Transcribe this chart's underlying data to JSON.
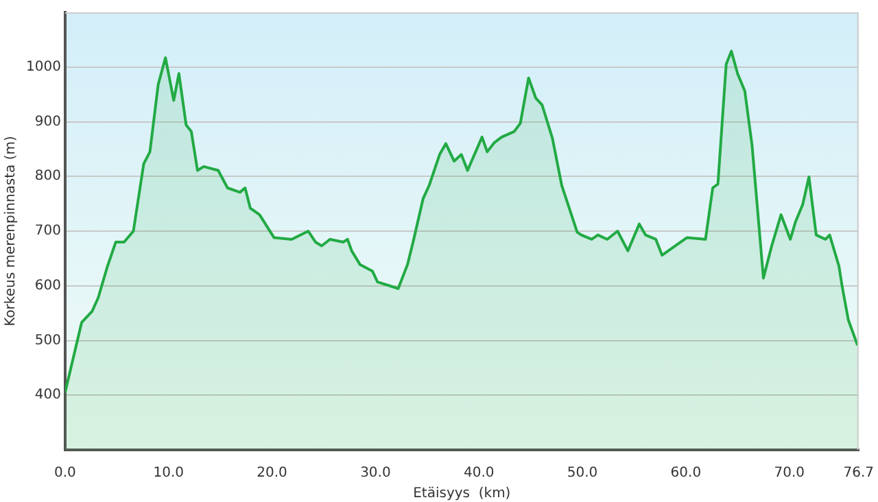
{
  "chart_data": {
    "type": "area",
    "xlabel": "Etäisyys  (km)",
    "ylabel": "Korkeus merenpinnasta (m)",
    "xlim": [
      0,
      76.7
    ],
    "ylim": [
      300,
      1100
    ],
    "xticks": [
      {
        "value": 0,
        "label": "0.0"
      },
      {
        "value": 10,
        "label": "10.0"
      },
      {
        "value": 20,
        "label": "20.0"
      },
      {
        "value": 30,
        "label": "30.0"
      },
      {
        "value": 40,
        "label": "40.0"
      },
      {
        "value": 50,
        "label": "50.0"
      },
      {
        "value": 60,
        "label": "60.0"
      },
      {
        "value": 70,
        "label": "70.0"
      },
      {
        "value": 76.7,
        "label": "76.7"
      }
    ],
    "yticks": [
      400,
      500,
      600,
      700,
      800,
      900,
      1000
    ],
    "grid": "y",
    "legend": false,
    "marker": "none",
    "line_style": "solid",
    "x": [
      0,
      1.6,
      2.6,
      3.2,
      4.1,
      4.9,
      5.7,
      6.6,
      7.6,
      8.2,
      9.0,
      9.7,
      10.5,
      11.0,
      11.7,
      12.2,
      12.8,
      13.4,
      14.8,
      15.7,
      16.9,
      17.4,
      17.9,
      18.8,
      20.2,
      21.9,
      23.5,
      24.2,
      24.8,
      25.6,
      26.9,
      27.3,
      27.7,
      28.5,
      29.7,
      30.2,
      32.2,
      33.1,
      33.7,
      34.6,
      35.2,
      36.2,
      36.8,
      37.6,
      38.3,
      38.9,
      40.3,
      40.8,
      41.5,
      42.2,
      43.4,
      44.0,
      44.8,
      45.5,
      46.1,
      47.1,
      48.0,
      49.5,
      49.9,
      50.9,
      51.5,
      52.4,
      53.4,
      54.4,
      55.5,
      56.1,
      57.1,
      57.7,
      59.2,
      60.1,
      61.9,
      62.6,
      63.1,
      63.9,
      64.4,
      65.0,
      65.7,
      66.4,
      67.5,
      68.3,
      69.2,
      70.1,
      70.6,
      71.3,
      71.9,
      72.6,
      73.5,
      73.9,
      74.8,
      75.1,
      75.7,
      76.6
    ],
    "series": [
      {
        "color": "#22aa44",
        "values": [
          405,
          533,
          553,
          578,
          636,
          680,
          680,
          700,
          823,
          845,
          968,
          1017,
          939,
          988,
          894,
          882,
          811,
          818,
          811,
          779,
          771,
          779,
          742,
          730,
          688,
          685,
          700,
          680,
          673,
          685,
          680,
          685,
          664,
          639,
          627,
          607,
          595,
          639,
          685,
          759,
          784,
          840,
          860,
          828,
          840,
          811,
          872,
          845,
          862,
          872,
          882,
          897,
          980,
          943,
          931,
          870,
          784,
          698,
          693,
          685,
          693,
          685,
          700,
          664,
          713,
          693,
          685,
          656,
          676,
          688,
          685,
          779,
          786,
          1005,
          1029,
          988,
          956,
          857,
          614,
          673,
          730,
          685,
          717,
          749,
          799,
          693,
          685,
          693,
          636,
          600,
          538,
          491
        ]
      }
    ]
  }
}
